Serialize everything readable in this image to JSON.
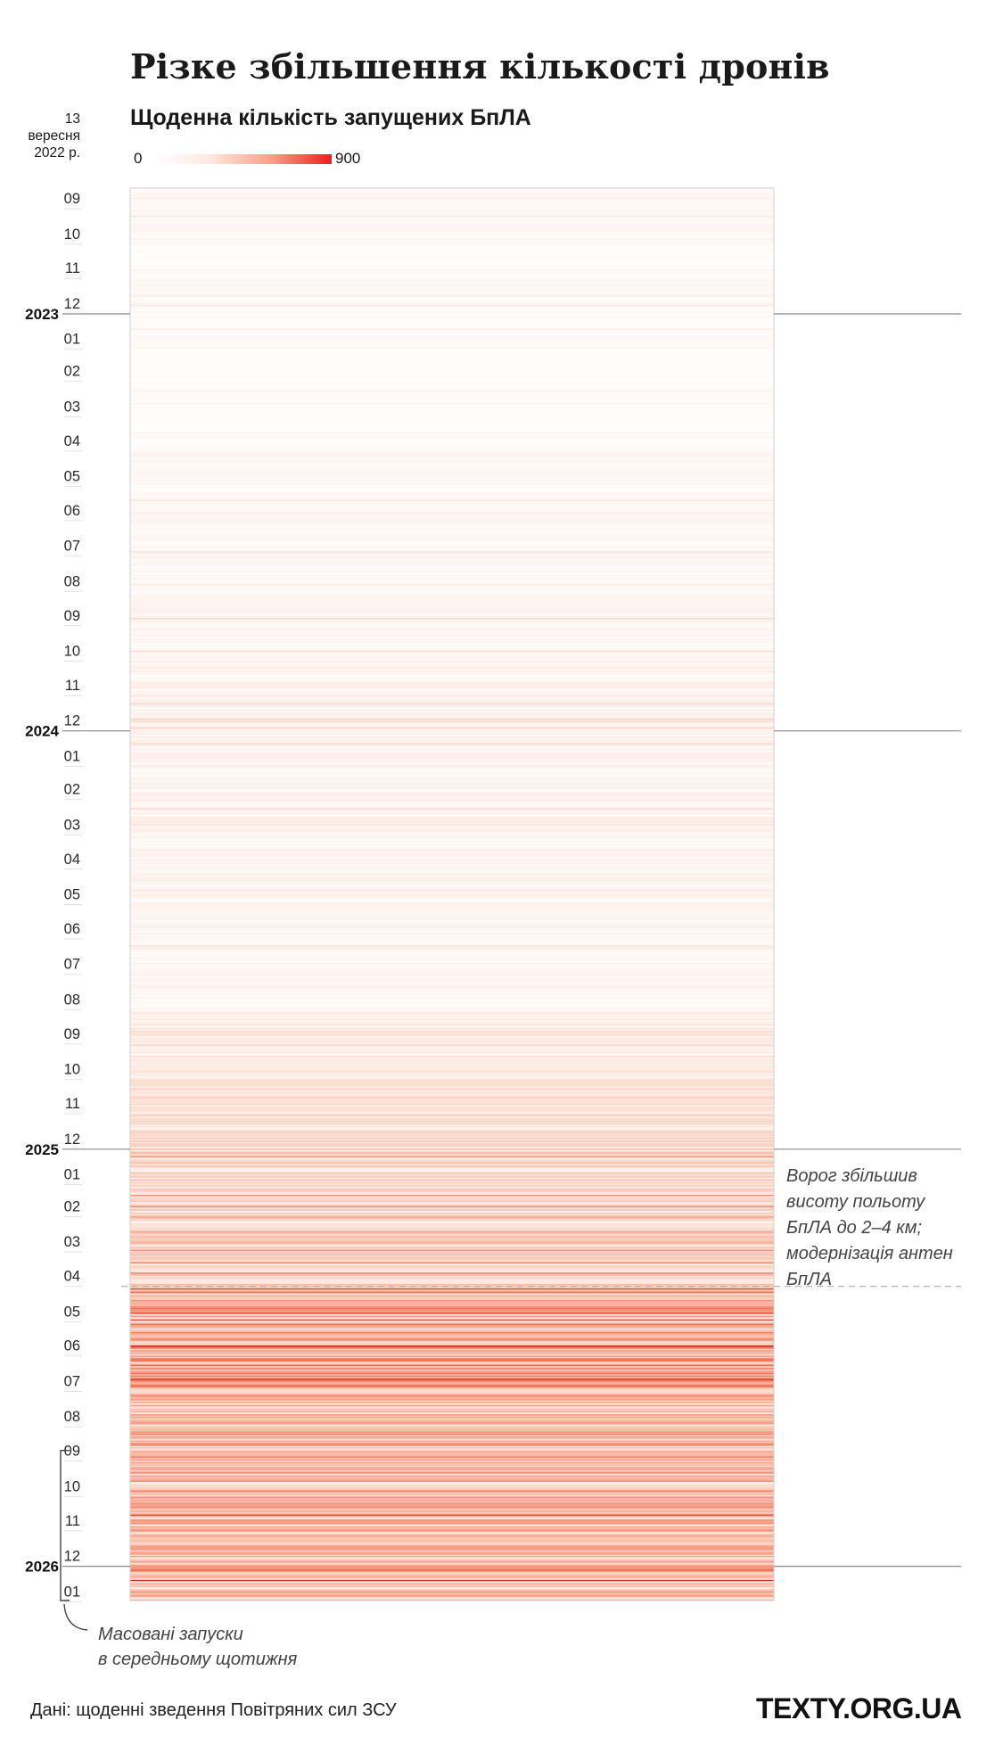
{
  "title": "Різке збільшення кількості дронів",
  "subtitle": "Щоденна кількість запущених БпЛА",
  "legend": {
    "min_label": "0",
    "max_label": "900"
  },
  "start_label": {
    "line1": "13",
    "line2": "вересня",
    "line3": "2022 р."
  },
  "annotations": {
    "altitude": {
      "line1": "Ворог збільшив",
      "line2": "висоту польоту",
      "line3": "БпЛА до 2–4 км;",
      "line4": "модернізація антен",
      "line5": "БпЛА"
    },
    "mass_launches": {
      "line1": "Масовані запуски",
      "line2": "в середньому щотижня"
    }
  },
  "source": "Дані: щоденні зведення Повітряних сил ЗСУ",
  "brand": "TEXTY.ORG.UA",
  "colors": {
    "low": "#ffffff",
    "mid": "#f7a28a",
    "high": "#ea1f1f",
    "axis_line": "#8a8a8a",
    "dashed": "#b5b5b5"
  },
  "chart_data": {
    "type": "heatmap",
    "title": "Різке збільшення кількості дронів",
    "subtitle": "Щоденна кількість запущених БпЛА",
    "value_range": [
      0,
      900
    ],
    "start_date": "2022-09-13",
    "end_date": "2026-01-31",
    "year_labels": [
      "2023",
      "2024",
      "2025",
      "2026"
    ],
    "month_ticks": [
      {
        "label": "09",
        "date": "2022-10-01"
      },
      {
        "label": "10",
        "date": "2022-11-01"
      },
      {
        "label": "11",
        "date": "2022-12-01"
      },
      {
        "label": "12",
        "date": "2023-01-01"
      },
      {
        "label": "01",
        "date": "2023-02-01"
      },
      {
        "label": "02",
        "date": "2023-03-01"
      },
      {
        "label": "03",
        "date": "2023-04-01"
      },
      {
        "label": "04",
        "date": "2023-05-01"
      },
      {
        "label": "05",
        "date": "2023-06-01"
      },
      {
        "label": "06",
        "date": "2023-07-01"
      },
      {
        "label": "07",
        "date": "2023-08-01"
      },
      {
        "label": "08",
        "date": "2023-09-01"
      },
      {
        "label": "09",
        "date": "2023-10-01"
      },
      {
        "label": "10",
        "date": "2023-11-01"
      },
      {
        "label": "11",
        "date": "2023-12-01"
      },
      {
        "label": "12",
        "date": "2024-01-01"
      },
      {
        "label": "01",
        "date": "2024-02-01"
      },
      {
        "label": "02",
        "date": "2024-03-01"
      },
      {
        "label": "03",
        "date": "2024-04-01"
      },
      {
        "label": "04",
        "date": "2024-05-01"
      },
      {
        "label": "05",
        "date": "2024-06-01"
      },
      {
        "label": "06",
        "date": "2024-07-01"
      },
      {
        "label": "07",
        "date": "2024-08-01"
      },
      {
        "label": "08",
        "date": "2024-09-01"
      },
      {
        "label": "09",
        "date": "2024-10-01"
      },
      {
        "label": "10",
        "date": "2024-11-01"
      },
      {
        "label": "11",
        "date": "2024-12-01"
      },
      {
        "label": "12",
        "date": "2025-01-01"
      },
      {
        "label": "01",
        "date": "2025-02-01"
      },
      {
        "label": "02",
        "date": "2025-03-01"
      },
      {
        "label": "03",
        "date": "2025-04-01"
      },
      {
        "label": "04",
        "date": "2025-05-01"
      },
      {
        "label": "05",
        "date": "2025-06-01"
      },
      {
        "label": "06",
        "date": "2025-07-01"
      },
      {
        "label": "07",
        "date": "2025-08-01"
      },
      {
        "label": "08",
        "date": "2025-09-01"
      },
      {
        "label": "09",
        "date": "2025-10-01"
      },
      {
        "label": "10",
        "date": "2025-11-01"
      },
      {
        "label": "11",
        "date": "2025-12-01"
      },
      {
        "label": "12",
        "date": "2026-01-01"
      },
      {
        "label": "01",
        "date": "2026-02-01"
      }
    ],
    "monthly_daily_avg": [
      {
        "month": "2022-09",
        "value": 25
      },
      {
        "month": "2022-10",
        "value": 30
      },
      {
        "month": "2022-11",
        "value": 15
      },
      {
        "month": "2022-12",
        "value": 25
      },
      {
        "month": "2023-01",
        "value": 20
      },
      {
        "month": "2023-02",
        "value": 8
      },
      {
        "month": "2023-03",
        "value": 15
      },
      {
        "month": "2023-04",
        "value": 12
      },
      {
        "month": "2023-05",
        "value": 30
      },
      {
        "month": "2023-06",
        "value": 25
      },
      {
        "month": "2023-07",
        "value": 30
      },
      {
        "month": "2023-08",
        "value": 25
      },
      {
        "month": "2023-09",
        "value": 40
      },
      {
        "month": "2023-10",
        "value": 35
      },
      {
        "month": "2023-11",
        "value": 45
      },
      {
        "month": "2023-12",
        "value": 50
      },
      {
        "month": "2024-01",
        "value": 45
      },
      {
        "month": "2024-02",
        "value": 40
      },
      {
        "month": "2024-03",
        "value": 45
      },
      {
        "month": "2024-04",
        "value": 35
      },
      {
        "month": "2024-05",
        "value": 40
      },
      {
        "month": "2024-06",
        "value": 35
      },
      {
        "month": "2024-07",
        "value": 30
      },
      {
        "month": "2024-08",
        "value": 35
      },
      {
        "month": "2024-09",
        "value": 70
      },
      {
        "month": "2024-10",
        "value": 70
      },
      {
        "month": "2024-11",
        "value": 100
      },
      {
        "month": "2024-12",
        "value": 110
      },
      {
        "month": "2025-01",
        "value": 120
      },
      {
        "month": "2025-02",
        "value": 130
      },
      {
        "month": "2025-03",
        "value": 150
      },
      {
        "month": "2025-04",
        "value": 140
      },
      {
        "month": "2025-05",
        "value": 230
      },
      {
        "month": "2025-06",
        "value": 260
      },
      {
        "month": "2025-07",
        "value": 300
      },
      {
        "month": "2025-08",
        "value": 220
      },
      {
        "month": "2025-09",
        "value": 260
      },
      {
        "month": "2025-10",
        "value": 250
      },
      {
        "month": "2025-11",
        "value": 230
      },
      {
        "month": "2025-12",
        "value": 210
      },
      {
        "month": "2026-01",
        "value": 220
      }
    ],
    "annotations": [
      {
        "date": "2025-05-01",
        "text": "Ворог збільшив висоту польоту БпЛА до 2–4 км; модернізація антен БпЛА"
      },
      {
        "date_start": "2025-10-01",
        "date_end": "2026-01-31",
        "text": "Масовані запуски в середньому щотижня"
      }
    ],
    "source": "Дані: щоденні зведення Повітряних сил ЗСУ"
  }
}
